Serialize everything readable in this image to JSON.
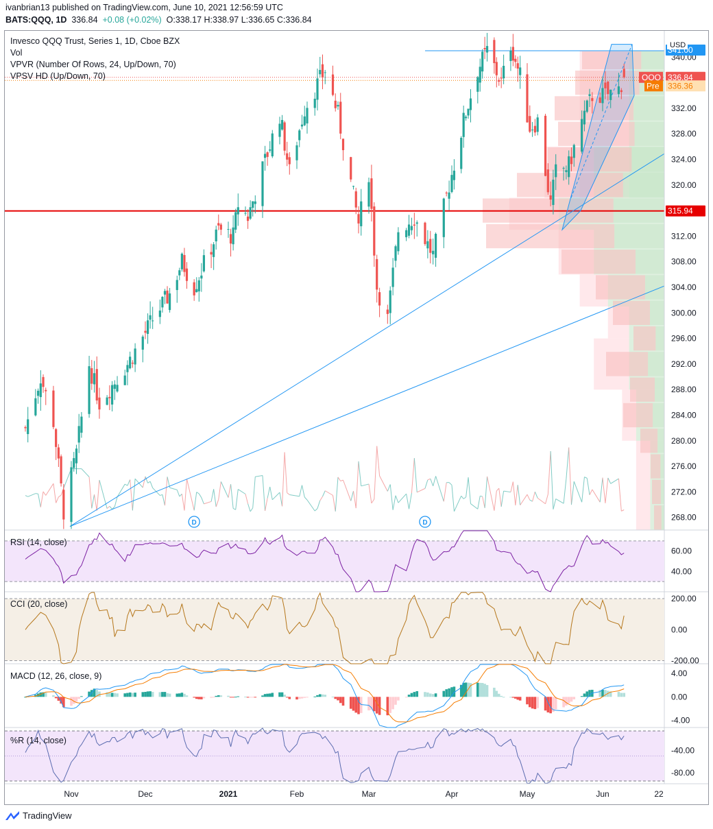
{
  "header": {
    "publisher": "ivanbrian13 published on TradingView.com, June 10, 2021 12:56:59 UTC",
    "symbol": "BATS:QQQ, 1D",
    "last": "336.84",
    "change": "+0.08 (+0.02%)",
    "ohlc": "O:338.17 H:338.97 L:336.65 C:336.84"
  },
  "legend": {
    "title": "Invesco QQQ Trust, Series 1, 1D, Cboe BZX",
    "vol": "Vol",
    "vpvr": "VPVR (Number Of Rows, 24, Up/Down, 70)",
    "vpsv": "VPSV HD (Up/Down, 70)"
  },
  "badges": {
    "currency": "USD",
    "symbol": "QQQ",
    "price": "336.84",
    "pre": "Pre",
    "pre_price": "336.36",
    "support": "315.94",
    "top": "341.00"
  },
  "dividend_marker": "D",
  "footer": {
    "brand": "TradingView"
  },
  "colors": {
    "up": "#26a69a",
    "down": "#ef5350",
    "line_blue": "#2196f3",
    "support": "#e60000",
    "rsi": "#7b1fa2",
    "cci": "#b5761a",
    "macd": "#2196f3",
    "signal": "#f57c00",
    "willr": "#5b6cb0"
  },
  "chart_data": [
    {
      "type": "candlestick",
      "title": "Invesco QQQ Trust, Series 1, 1D, Cboe BZX",
      "x_ticks": [
        "Nov",
        "Dec",
        "2021",
        "Feb",
        "Mar",
        "Apr",
        "May",
        "Jun",
        "22"
      ],
      "y_ticks": [
        340,
        336,
        332,
        328,
        324,
        320,
        316,
        312,
        308,
        304,
        300,
        296,
        292,
        288,
        284,
        280,
        276,
        272,
        268
      ],
      "y_range": [
        266,
        344
      ],
      "last_close": 336.84,
      "pre_market": 336.36,
      "support_level": 315.94,
      "resistance_level": 341.0,
      "anchor_points": [
        {
          "date": "2020-10-30",
          "close": 269
        },
        {
          "date": "2020-12-04",
          "close": 294
        },
        {
          "date": "2021-01-12",
          "close": 312
        },
        {
          "date": "2021-02-12",
          "close": 338
        },
        {
          "date": "2021-03-08",
          "close": 299
        },
        {
          "date": "2021-03-31",
          "close": 320
        },
        {
          "date": "2021-04-16",
          "close": 341
        },
        {
          "date": "2021-05-12",
          "close": 317
        },
        {
          "date": "2021-06-09",
          "close": 336.84
        }
      ]
    },
    {
      "type": "line",
      "title": "RSI (14, close)",
      "y_ticks": [
        60,
        40
      ],
      "range": [
        20,
        80
      ],
      "last": 58
    },
    {
      "type": "line",
      "title": "CCI (20, close)",
      "y_ticks": [
        200,
        0,
        -200
      ],
      "range": [
        -220,
        240
      ],
      "last": 90
    },
    {
      "type": "line",
      "title": "MACD (12, 26, close, 9)",
      "y_ticks": [
        4,
        0,
        -4
      ],
      "range": [
        -5.2,
        5.5
      ],
      "last_macd": 1.7,
      "last_signal": 0.9
    },
    {
      "type": "line",
      "title": "%R (14, close)",
      "y_ticks": [
        -40,
        -80
      ],
      "range": [
        -100,
        0
      ],
      "last": -14
    }
  ]
}
